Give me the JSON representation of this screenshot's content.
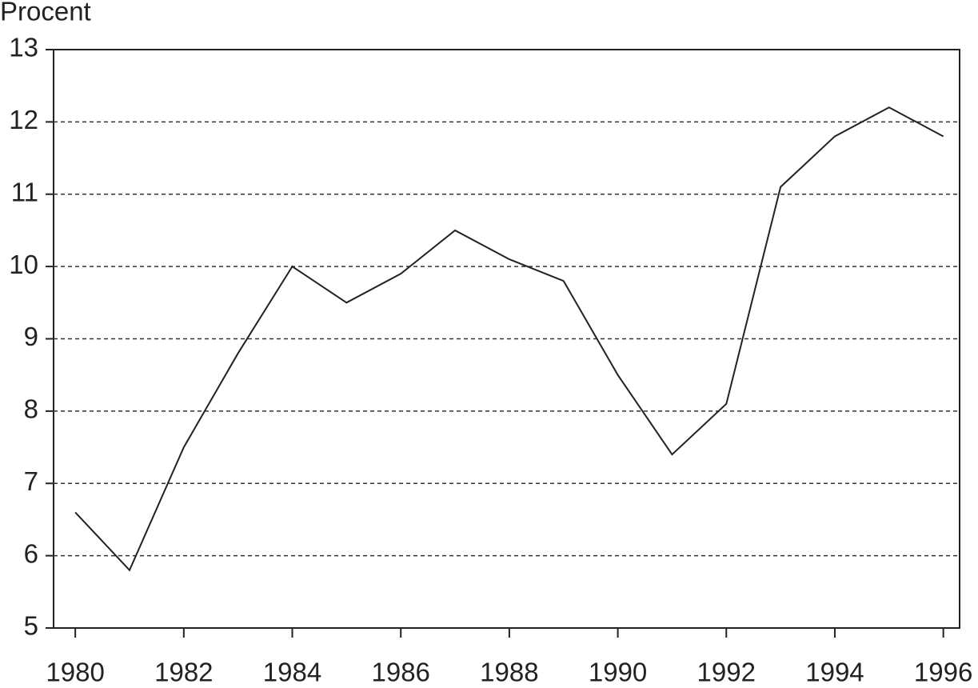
{
  "chart_data": {
    "type": "line",
    "y_axis_label": "Procent",
    "x": [
      1980,
      1981,
      1982,
      1983,
      1984,
      1985,
      1986,
      1987,
      1988,
      1989,
      1990,
      1991,
      1992,
      1993,
      1994,
      1995,
      1996
    ],
    "values": [
      6.6,
      5.8,
      7.5,
      8.8,
      10.0,
      9.5,
      9.9,
      10.5,
      10.1,
      9.8,
      8.5,
      7.4,
      8.1,
      11.1,
      11.8,
      12.2,
      11.8
    ],
    "color": "#222222",
    "xlim": [
      1979.6,
      1996.3
    ],
    "xticks": [
      1980,
      1982,
      1984,
      1986,
      1988,
      1990,
      1992,
      1994,
      1996
    ],
    "ylim": [
      5,
      13
    ],
    "yticks": [
      5,
      6,
      7,
      8,
      9,
      10,
      11,
      12,
      13
    ],
    "grid": true
  }
}
